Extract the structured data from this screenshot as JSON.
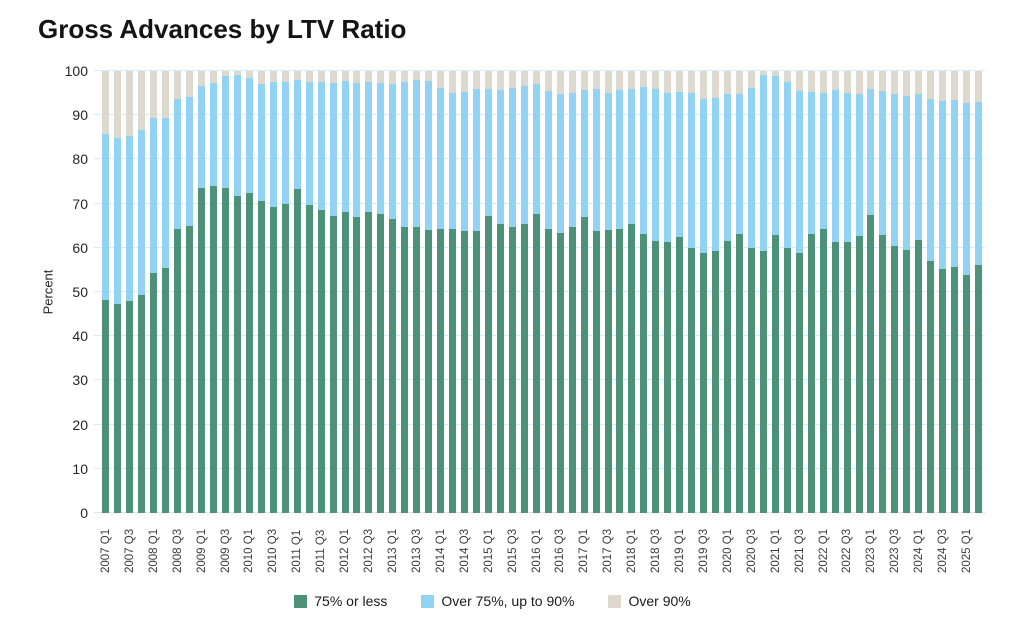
{
  "title": "Gross Advances by LTV Ratio",
  "y_axis": {
    "label": "Percent",
    "tick_labels": [
      "0",
      "10",
      "20",
      "30",
      "40",
      "50",
      "60",
      "70",
      "80",
      "90",
      "100"
    ],
    "min": 0,
    "max": 100
  },
  "legend": {
    "items": [
      {
        "label": "75% or less",
        "color": "#4d9178"
      },
      {
        "label": "Over 75%, up to 90%",
        "color": "#92d2f3"
      },
      {
        "label": "Over 90%",
        "color": "#ddd9ce"
      }
    ]
  },
  "colors": {
    "gridline": "#d5ecfa",
    "zero_line": "#e9e4da",
    "axis_text": "#262626",
    "title_text": "#141414"
  },
  "chart_data": {
    "type": "bar",
    "stacked": true,
    "percent_stacked": true,
    "title": "Gross Advances by LTV Ratio",
    "xlabel": "",
    "ylabel": "Percent",
    "ylim": [
      0,
      100
    ],
    "grid": true,
    "legend_position": "bottom",
    "x_label_every": 2,
    "categories": [
      "2007 Q1",
      "2007 Q2",
      "2007 Q3",
      "2007 Q4",
      "2008 Q1",
      "2008 Q2",
      "2008 Q3",
      "2008 Q4",
      "2009 Q1",
      "2009 Q2",
      "2009 Q3",
      "2009 Q4",
      "2010 Q1",
      "2010 Q2",
      "2010 Q3",
      "2010 Q4",
      "2011 Q1",
      "2011 Q2",
      "2011 Q3",
      "2011 Q4",
      "2012 Q1",
      "2012 Q2",
      "2012 Q3",
      "2012 Q4",
      "2013 Q1",
      "2013 Q2",
      "2013 Q3",
      "2013 Q4",
      "2014 Q1",
      "2014 Q2",
      "2014 Q3",
      "2014 Q4",
      "2015 Q1",
      "2015 Q2",
      "2015 Q3",
      "2015 Q4",
      "2016 Q1",
      "2016 Q2",
      "2016 Q3",
      "2016 Q4",
      "2017 Q1",
      "2017 Q2",
      "2017 Q3",
      "2017 Q4",
      "2018 Q1",
      "2018 Q2",
      "2018 Q3",
      "2018 Q4",
      "2019 Q1",
      "2019 Q2",
      "2019 Q3",
      "2019 Q4",
      "2020 Q1",
      "2020 Q2",
      "2020 Q3",
      "2020 Q4",
      "2021 Q1",
      "2021 Q2",
      "2021 Q3",
      "2021 Q4",
      "2022 Q1",
      "2022 Q2",
      "2022 Q3",
      "2022 Q4",
      "2023 Q1",
      "2023 Q2",
      "2023 Q3",
      "2023 Q4",
      "2024 Q1",
      "2024 Q2",
      "2024 Q3",
      "2024 Q4",
      "2025 Q1",
      "2025 Q2"
    ],
    "series": [
      {
        "name": "75% or less",
        "color": "#4d9178",
        "values": [
          48.2,
          47.4,
          48.0,
          49.3,
          54.3,
          55.5,
          64.3,
          65.0,
          73.6,
          74.0,
          73.5,
          71.7,
          72.5,
          70.5,
          69.3,
          69.8,
          73.4,
          69.7,
          68.6,
          67.1,
          68.0,
          67.0,
          68.2,
          67.6,
          66.6,
          64.6,
          64.8,
          64.0,
          64.3,
          64.2,
          63.7,
          63.8,
          67.1,
          65.3,
          64.8,
          65.5,
          67.6,
          64.3,
          63.4,
          64.6,
          67.0,
          63.8,
          64.0,
          64.2,
          65.5,
          63.2,
          61.5,
          61.3,
          62.5,
          59.9,
          58.9,
          59.3,
          61.6,
          63.2,
          59.9,
          59.3,
          62.9,
          60.0,
          58.8,
          63.1,
          64.2,
          61.4,
          61.3,
          62.6,
          67.4,
          63.0,
          60.3,
          59.4,
          61.7,
          57.0,
          55.1,
          55.7,
          53.9,
          56.2
        ]
      },
      {
        "name": "Over 75%, up to 90%",
        "color": "#92d2f3",
        "values": [
          37.6,
          37.5,
          37.3,
          37.3,
          35.1,
          33.8,
          29.3,
          29.2,
          23.1,
          23.3,
          25.4,
          27.4,
          26.0,
          26.6,
          28.3,
          27.8,
          24.6,
          27.8,
          28.9,
          30.1,
          29.8,
          30.2,
          29.4,
          29.7,
          30.5,
          33.0,
          33.1,
          33.7,
          31.9,
          30.9,
          31.6,
          32.1,
          28.9,
          30.4,
          31.4,
          31.1,
          29.5,
          31.1,
          31.5,
          30.5,
          28.6,
          32.1,
          31.1,
          31.4,
          30.5,
          33.2,
          34.4,
          33.8,
          32.7,
          35.2,
          34.7,
          34.5,
          33.1,
          31.7,
          36.3,
          39.8,
          36.0,
          37.6,
          36.7,
          32.2,
          30.9,
          34.2,
          33.8,
          32.1,
          28.6,
          32.5,
          34.6,
          34.9,
          33.0,
          36.7,
          38.1,
          37.7,
          38.9,
          36.7
        ]
      },
      {
        "name": "Over 90%",
        "color": "#ddd9ce",
        "values": [
          14.2,
          15.1,
          14.7,
          13.4,
          10.6,
          10.7,
          6.4,
          5.8,
          3.3,
          2.7,
          1.1,
          0.9,
          1.5,
          2.9,
          2.4,
          2.4,
          2.0,
          2.5,
          2.5,
          2.8,
          2.2,
          2.8,
          2.4,
          2.7,
          2.9,
          2.4,
          2.1,
          2.3,
          3.8,
          4.9,
          4.7,
          4.1,
          4.0,
          4.3,
          3.8,
          3.4,
          2.9,
          4.6,
          5.1,
          4.9,
          4.4,
          4.1,
          4.9,
          4.4,
          4.0,
          3.6,
          4.1,
          4.9,
          4.8,
          4.9,
          6.4,
          6.2,
          5.3,
          5.1,
          3.8,
          0.9,
          1.1,
          2.4,
          4.5,
          4.7,
          4.9,
          4.4,
          4.9,
          5.3,
          4.0,
          4.5,
          5.1,
          5.7,
          5.3,
          6.3,
          6.8,
          6.6,
          7.2,
          7.1
        ]
      }
    ]
  }
}
